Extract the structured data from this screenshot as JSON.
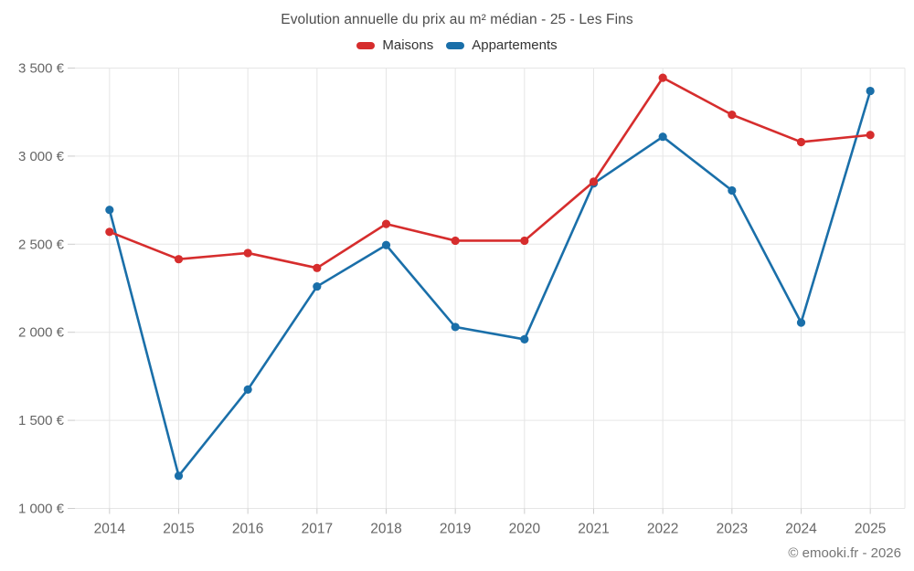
{
  "title": "Evolution annuelle du prix au m² médian - 25 - Les Fins",
  "footer": "© emooki.fr - 2026",
  "colors": {
    "maisons": "#d62d2d",
    "appartements": "#1a6fa9",
    "gridline": "#e6e6e6",
    "tick": "#cccccc",
    "axis_label": "#666666",
    "title": "#4d4d4d",
    "legend_text": "#333333",
    "background": "#ffffff"
  },
  "chart_data": {
    "type": "line",
    "title": "Evolution annuelle du prix au m² médian - 25 - Les Fins",
    "categories": [
      "2014",
      "2015",
      "2016",
      "2017",
      "2018",
      "2019",
      "2020",
      "2021",
      "2022",
      "2023",
      "2024",
      "2025"
    ],
    "series": [
      {
        "name": "Maisons",
        "color": "#d62d2d",
        "values": [
          2570,
          2415,
          2450,
          2365,
          2615,
          2520,
          2520,
          2855,
          3445,
          3235,
          3080,
          3120
        ]
      },
      {
        "name": "Appartements",
        "color": "#1a6fa9",
        "values": [
          2695,
          1185,
          1675,
          2260,
          2495,
          2030,
          1960,
          2845,
          3110,
          2805,
          2055,
          3370
        ]
      }
    ],
    "xlabel": "",
    "ylabel": "",
    "ylim": [
      1000,
      3500
    ],
    "yticks": [
      3500,
      3000,
      2500,
      2000,
      1500,
      1000
    ],
    "ytick_labels": [
      "3 500 €",
      "3 000 €",
      "2 500 €",
      "2 000 €",
      "1 500 €",
      "1 000 €"
    ],
    "grid": true,
    "legend_position": "top",
    "legend_entries": [
      "Maisons",
      "Appartements"
    ]
  }
}
